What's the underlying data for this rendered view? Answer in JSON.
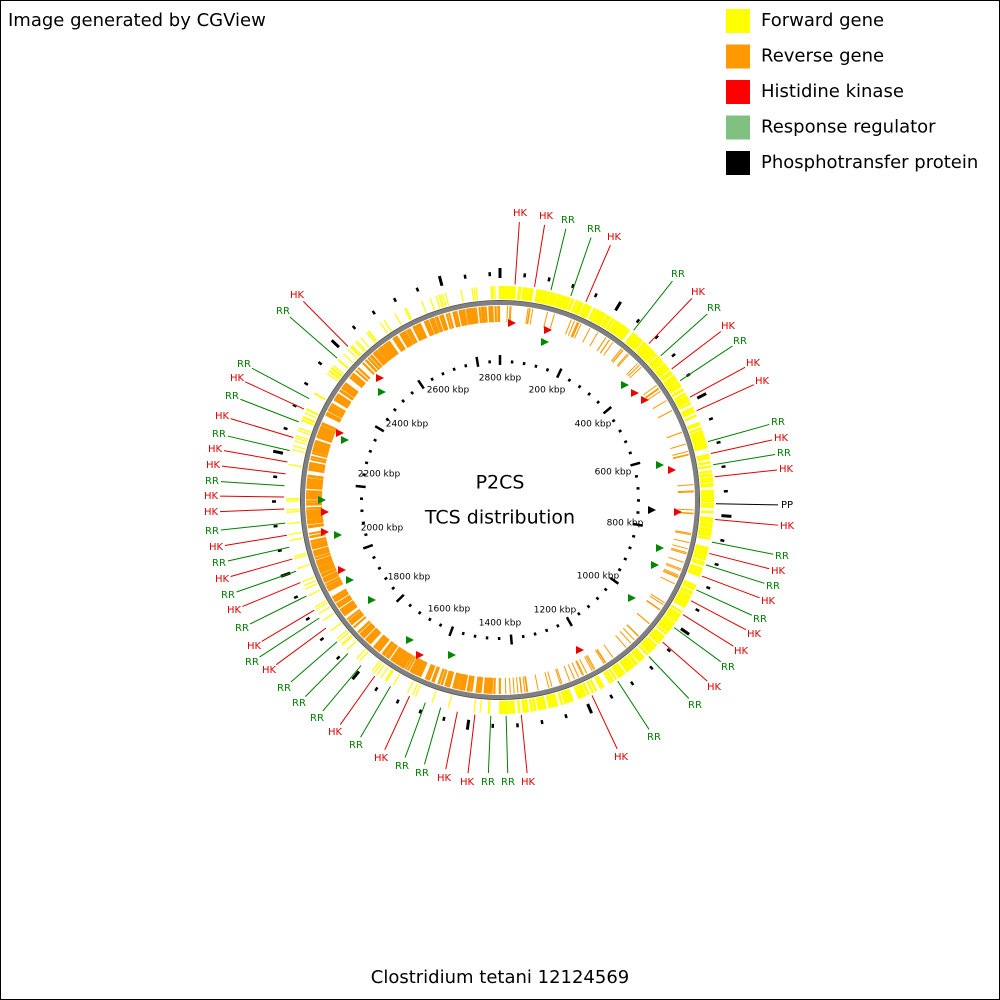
{
  "header": {
    "note": "Image generated by CGView"
  },
  "legend": [
    {
      "label": "Forward gene",
      "color": "#ffff00"
    },
    {
      "label": "Reverse gene",
      "color": "#ff9900"
    },
    {
      "label": "Histidine kinase",
      "color": "#ff0000"
    },
    {
      "label": "Response regulator",
      "color": "#80c080"
    },
    {
      "label": "Phosphotransfer protein",
      "color": "#000000"
    }
  ],
  "center": {
    "title": "P2CS",
    "subtitle": "TCS distribution"
  },
  "footer": "Clostridium tetani 12124569",
  "scale_labels": [
    "2800 kbp",
    "200 kbp",
    "400 kbp",
    "600 kbp",
    "800 kbp",
    "1000 kbp",
    "1200 kbp",
    "1400 kbp",
    "1600 kbp",
    "1800 kbp",
    "2000 kbp",
    "2200 kbp",
    "2400 kbp",
    "2600 kbp"
  ],
  "feature_labels": [
    {
      "text": "HK",
      "color": "#e00000"
    },
    {
      "text": "HK",
      "color": "#e00000"
    },
    {
      "text": "RR",
      "color": "#008000"
    },
    {
      "text": "RR",
      "color": "#008000"
    },
    {
      "text": "HK",
      "color": "#e00000"
    },
    {
      "text": "RR",
      "color": "#008000"
    },
    {
      "text": "HK",
      "color": "#e00000"
    },
    {
      "text": "RR",
      "color": "#008000"
    },
    {
      "text": "HK",
      "color": "#e00000"
    },
    {
      "text": "RR",
      "color": "#008000"
    },
    {
      "text": "HK",
      "color": "#e00000"
    },
    {
      "text": "HK",
      "color": "#e00000"
    },
    {
      "text": "RR",
      "color": "#008000"
    },
    {
      "text": "HK",
      "color": "#e00000"
    },
    {
      "text": "RR",
      "color": "#008000"
    },
    {
      "text": "HK",
      "color": "#e00000"
    },
    {
      "text": "PP",
      "color": "#000000"
    },
    {
      "text": "HK",
      "color": "#e00000"
    },
    {
      "text": "RR",
      "color": "#008000"
    },
    {
      "text": "HK",
      "color": "#e00000"
    },
    {
      "text": "RR",
      "color": "#008000"
    },
    {
      "text": "HK",
      "color": "#e00000"
    },
    {
      "text": "RR",
      "color": "#008000"
    },
    {
      "text": "HK",
      "color": "#e00000"
    },
    {
      "text": "HK",
      "color": "#e00000"
    },
    {
      "text": "RR",
      "color": "#008000"
    },
    {
      "text": "HK",
      "color": "#e00000"
    },
    {
      "text": "RR",
      "color": "#008000"
    },
    {
      "text": "RR",
      "color": "#008000"
    },
    {
      "text": "HK",
      "color": "#e00000"
    },
    {
      "text": "HK",
      "color": "#e00000"
    },
    {
      "text": "RR",
      "color": "#008000"
    },
    {
      "text": "RR",
      "color": "#008000"
    },
    {
      "text": "HK",
      "color": "#e00000"
    },
    {
      "text": "HK",
      "color": "#e00000"
    },
    {
      "text": "RR",
      "color": "#008000"
    },
    {
      "text": "RR",
      "color": "#008000"
    },
    {
      "text": "HK",
      "color": "#e00000"
    },
    {
      "text": "RR",
      "color": "#008000"
    },
    {
      "text": "HK",
      "color": "#e00000"
    },
    {
      "text": "RR",
      "color": "#008000"
    },
    {
      "text": "RR",
      "color": "#008000"
    },
    {
      "text": "RR",
      "color": "#008000"
    },
    {
      "text": "HK",
      "color": "#e00000"
    },
    {
      "text": "RR",
      "color": "#008000"
    },
    {
      "text": "HK",
      "color": "#e00000"
    },
    {
      "text": "RR",
      "color": "#008000"
    },
    {
      "text": "HK",
      "color": "#e00000"
    },
    {
      "text": "RR",
      "color": "#008000"
    },
    {
      "text": "HK",
      "color": "#e00000"
    },
    {
      "text": "RR",
      "color": "#008000"
    },
    {
      "text": "HK",
      "color": "#e00000"
    },
    {
      "text": "RR",
      "color": "#008000"
    },
    {
      "text": "HK",
      "color": "#e00000"
    },
    {
      "text": "HK",
      "color": "#e00000"
    },
    {
      "text": "RR",
      "color": "#008000"
    },
    {
      "text": "HK",
      "color": "#e00000"
    },
    {
      "text": "HK",
      "color": "#e00000"
    },
    {
      "text": "RR",
      "color": "#008000"
    },
    {
      "text": "HK",
      "color": "#e00000"
    },
    {
      "text": "RR",
      "color": "#008000"
    },
    {
      "text": "HK",
      "color": "#e00000"
    },
    {
      "text": "RR",
      "color": "#008000"
    },
    {
      "text": "RR",
      "color": "#008000"
    },
    {
      "text": "HK",
      "color": "#e00000"
    }
  ]
}
